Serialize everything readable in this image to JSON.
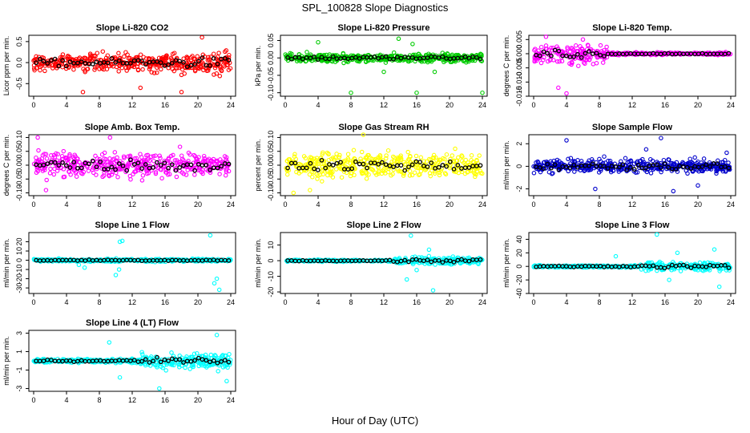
{
  "figure": {
    "title": "SPL_100828  Slope Diagnostics",
    "xlabel": "Hour of Day (UTC)"
  },
  "chart_data": [
    {
      "type": "scatter",
      "title": "Slope Li-820 CO2",
      "ylabel": "Licor ppm per min.",
      "color": "#ff0000",
      "xlim": [
        0,
        24
      ],
      "xticks": [
        0,
        4,
        8,
        12,
        16,
        20,
        24
      ],
      "ylim": [
        -0.8,
        0.65
      ],
      "yticks": [
        -0.5,
        0.0,
        0.5
      ],
      "ytick_labels": [
        "-0.5",
        "0.0",
        "0.5"
      ],
      "spread": 0.22,
      "noise_profile": "uniform-growing",
      "outliers": [
        [
          20.5,
          0.6
        ],
        [
          18,
          -0.7
        ],
        [
          13,
          -0.6
        ],
        [
          6,
          -0.7
        ]
      ]
    },
    {
      "type": "scatter",
      "title": "Slope Li-820 Pressure",
      "ylabel": "kPa per min.",
      "color": "#00cc00",
      "xlim": [
        0,
        24
      ],
      "xticks": [
        0,
        4,
        8,
        12,
        16,
        20,
        24
      ],
      "ylim": [
        -0.11,
        0.065
      ],
      "yticks": [
        -0.1,
        -0.05,
        0.0,
        0.05
      ],
      "ytick_labels": [
        "-0.10",
        "-0.05",
        "0.00",
        "0.05"
      ],
      "spread": 0.012,
      "noise_profile": "uniform",
      "outliers": [
        [
          13.8,
          0.055
        ],
        [
          15.5,
          0.04
        ],
        [
          4,
          0.045
        ],
        [
          8,
          -0.1
        ],
        [
          16,
          -0.1
        ],
        [
          24,
          -0.1
        ],
        [
          12,
          -0.04
        ],
        [
          18.2,
          -0.04
        ]
      ]
    },
    {
      "type": "scatter",
      "title": "Slope Li-820 Temp.",
      "ylabel": "degrees C per min.",
      "color": "#ff00ff",
      "xlim": [
        0,
        24
      ],
      "xticks": [
        0,
        4,
        8,
        12,
        16,
        20,
        24
      ],
      "ylim": [
        -0.015,
        0.0065
      ],
      "yticks": [
        -0.015,
        -0.01,
        -0.005,
        0.0,
        0.005
      ],
      "ytick_labels": [
        "-0.015",
        "-0.010",
        "-0.005",
        "0.000",
        "0.005"
      ],
      "spread": 0.0035,
      "noise_profile": "early-large",
      "outliers": [
        [
          1.5,
          0.006
        ],
        [
          4,
          -0.014
        ],
        [
          3,
          -0.012
        ],
        [
          6,
          0.005
        ]
      ]
    },
    {
      "type": "scatter",
      "title": "Slope Amb. Box Temp.",
      "ylabel": "degrees C per min.",
      "color": "#ff00ff",
      "xlim": [
        0,
        24
      ],
      "xticks": [
        0,
        4,
        8,
        12,
        16,
        20,
        24
      ],
      "ylim": [
        -0.11,
        0.11
      ],
      "yticks": [
        -0.1,
        -0.05,
        0.0,
        0.05,
        0.1
      ],
      "ytick_labels": [
        "-0.10",
        "-0.05",
        "0.00",
        "0.05",
        "0.10"
      ],
      "spread": 0.045,
      "noise_profile": "uniform",
      "outliers": [
        [
          0.5,
          0.1
        ],
        [
          9.3,
          0.1
        ],
        [
          1.5,
          -0.09
        ]
      ]
    },
    {
      "type": "scatter",
      "title": "Slope Gas Stream RH",
      "ylabel": "percent per min.",
      "color": "#ffff00",
      "xlim": [
        0,
        24
      ],
      "xticks": [
        0,
        4,
        8,
        12,
        16,
        20,
        24
      ],
      "ylim": [
        -0.11,
        0.11
      ],
      "yticks": [
        -0.1,
        -0.05,
        0.0,
        0.05,
        0.1
      ],
      "ytick_labels": [
        "-0.10",
        "-0.05",
        "0.00",
        "0.05",
        "0.10"
      ],
      "spread": 0.045,
      "noise_profile": "uniform",
      "outliers": [
        [
          9.5,
          0.11
        ],
        [
          1,
          -0.1
        ],
        [
          3,
          -0.09
        ]
      ]
    },
    {
      "type": "scatter",
      "title": "Slope Sample Flow",
      "ylabel": "ml/min per min.",
      "color": "#0000cc",
      "xlim": [
        0,
        24
      ],
      "xticks": [
        0,
        4,
        8,
        12,
        16,
        20,
        24
      ],
      "ylim": [
        -2.6,
        2.8
      ],
      "yticks": [
        -2,
        0,
        2
      ],
      "ytick_labels": [
        "-2",
        "0",
        "2"
      ],
      "spread": 0.6,
      "noise_profile": "uniform",
      "outliers": [
        [
          4,
          2.3
        ],
        [
          13.7,
          1.5
        ],
        [
          15.5,
          2.5
        ],
        [
          17,
          -2.2
        ],
        [
          20,
          -1.7
        ],
        [
          7.5,
          -2.0
        ],
        [
          23.5,
          1.2
        ]
      ]
    },
    {
      "type": "scatter",
      "title": "Slope Line 1 Flow",
      "ylabel": "ml/min per min.",
      "color": "#00ffff",
      "xlim": [
        0,
        24
      ],
      "xticks": [
        0,
        4,
        8,
        12,
        16,
        20,
        24
      ],
      "ylim": [
        -36,
        30
      ],
      "yticks": [
        -30,
        -20,
        -10,
        0,
        10,
        20
      ],
      "ytick_labels": [
        "-30",
        "-20",
        "-10",
        "0",
        "10",
        "20"
      ],
      "spread": 1.5,
      "noise_profile": "uniform",
      "outliers": [
        [
          10.5,
          20
        ],
        [
          10.8,
          21
        ],
        [
          10,
          -16
        ],
        [
          10.4,
          -10
        ],
        [
          22,
          -25
        ],
        [
          22.3,
          -20
        ],
        [
          21.5,
          27
        ],
        [
          22.6,
          -32
        ],
        [
          6.2,
          -8
        ],
        [
          5.5,
          -5
        ]
      ]
    },
    {
      "type": "scatter",
      "title": "Slope Line 2 Flow",
      "ylabel": "ml/min per min.",
      "color": "#00ffff",
      "xlim": [
        0,
        24
      ],
      "xticks": [
        0,
        4,
        8,
        12,
        16,
        20,
        24
      ],
      "ylim": [
        -21,
        18
      ],
      "yticks": [
        -20,
        -10,
        0,
        10
      ],
      "ytick_labels": [
        "-20",
        "-10",
        "0",
        "10"
      ],
      "spread": 1.0,
      "noise_profile": "late-large",
      "outliers": [
        [
          15.3,
          16
        ],
        [
          18,
          -19
        ],
        [
          14.8,
          -12
        ],
        [
          17.5,
          7
        ],
        [
          16,
          -6
        ]
      ]
    },
    {
      "type": "scatter",
      "title": "Slope Line 3 Flow",
      "ylabel": "ml/min per min.",
      "color": "#00ffff",
      "xlim": [
        0,
        24
      ],
      "xticks": [
        0,
        4,
        8,
        12,
        16,
        20,
        24
      ],
      "ylim": [
        -40,
        50
      ],
      "yticks": [
        -40,
        -20,
        0,
        20,
        40
      ],
      "ytick_labels": [
        "-40",
        "-20",
        "0",
        "20",
        "40"
      ],
      "spread": 3.0,
      "noise_profile": "late-large",
      "outliers": [
        [
          15,
          47
        ],
        [
          16.5,
          -20
        ],
        [
          22.6,
          -30
        ],
        [
          10,
          15
        ],
        [
          22,
          25
        ],
        [
          17.5,
          20
        ]
      ]
    },
    {
      "type": "scatter",
      "title": "Slope Line 4 (LT) Flow",
      "ylabel": "ml/min per min.",
      "color": "#00ffff",
      "xlim": [
        0,
        24
      ],
      "xticks": [
        0,
        4,
        8,
        12,
        16,
        20,
        24
      ],
      "ylim": [
        -3.3,
        3.3
      ],
      "yticks": [
        -3,
        -1,
        1,
        3
      ],
      "ytick_labels": [
        "-3",
        "-1",
        "1",
        "3"
      ],
      "spread": 0.35,
      "noise_profile": "late-large",
      "outliers": [
        [
          15.3,
          -3
        ],
        [
          22.3,
          2.8
        ],
        [
          23.5,
          -2.2
        ],
        [
          10.5,
          -1.8
        ],
        [
          9.2,
          2
        ]
      ]
    }
  ]
}
